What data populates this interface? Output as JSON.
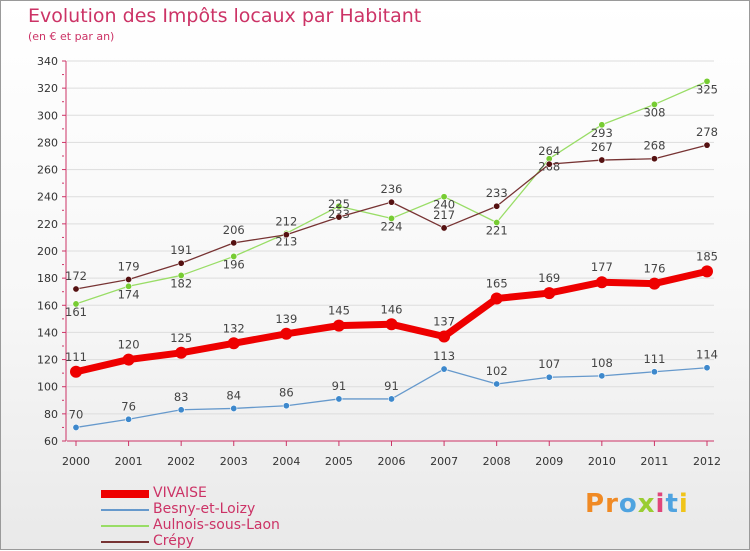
{
  "header": {
    "title": "Evolution des Impôts locaux par Habitant",
    "subtitle": "(en € et par an)"
  },
  "logo": {
    "text": "Proxiti",
    "colors": [
      "#f08a24",
      "#4fa3e0",
      "#9acd32",
      "#e0457b",
      "#f0c419"
    ]
  },
  "colors": {
    "title": "#cc3366",
    "axis": "#cc3366",
    "grid": "#dddddd"
  },
  "chart_data": {
    "type": "line",
    "title": "Evolution des Impôts locaux par Habitant",
    "subtitle": "(en € et par an)",
    "xlabel": "",
    "ylabel": "",
    "ylim": [
      60,
      340
    ],
    "yticks": [
      60,
      80,
      100,
      120,
      140,
      160,
      180,
      200,
      220,
      240,
      260,
      280,
      300,
      320,
      340
    ],
    "x": [
      "2000",
      "2001",
      "2002",
      "2003",
      "2004",
      "2005",
      "2006",
      "2007",
      "2008",
      "2009",
      "2010",
      "2011",
      "2012"
    ],
    "grid": true,
    "legend_position": "bottom-left",
    "series": [
      {
        "name": "Aulnois-sous-Laon",
        "color": "#99dd66",
        "point_color": "#77cc33",
        "width": 1.3,
        "radius": 3.2,
        "label_dy": 12,
        "values": [
          161,
          174,
          182,
          196,
          213,
          233,
          224,
          240,
          221,
          268,
          293,
          308,
          325
        ]
      },
      {
        "name": "Crépy",
        "color": "#773333",
        "point_color": "#551111",
        "width": 1.3,
        "radius": 3.2,
        "label_dy": -9,
        "values": [
          172,
          179,
          191,
          206,
          212,
          225,
          236,
          217,
          233,
          264,
          267,
          268,
          278
        ]
      },
      {
        "name": "Besny-et-Loizy",
        "color": "#6699cc",
        "point_color": "#3d88cc",
        "width": 1.3,
        "radius": 3.2,
        "label_dy": -9,
        "values": [
          70,
          76,
          83,
          84,
          86,
          91,
          91,
          113,
          102,
          107,
          108,
          111,
          114
        ]
      },
      {
        "name": "VIVAISE",
        "color": "#ee0000",
        "point_color": "#ee0000",
        "width": 7,
        "radius": 6,
        "label_dy": -11,
        "values": [
          111,
          120,
          125,
          132,
          139,
          145,
          146,
          137,
          165,
          169,
          177,
          176,
          185
        ]
      }
    ],
    "legend_order": [
      "VIVAISE",
      "Besny-et-Loizy",
      "Aulnois-sous-Laon",
      "Crépy"
    ]
  }
}
